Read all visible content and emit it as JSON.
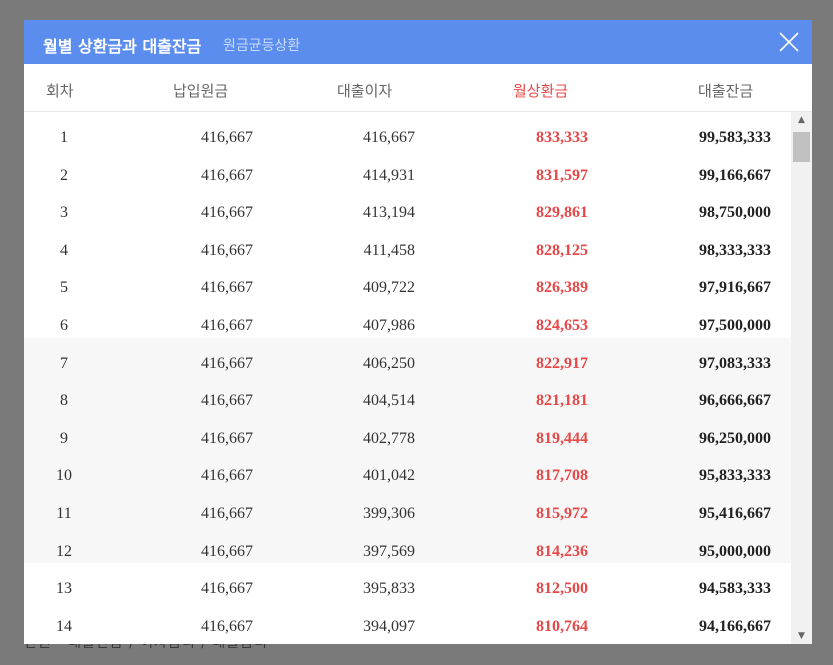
{
  "background": {
    "text": "만원 · 대출잔금 / 이자금리 / 대출금리"
  },
  "modal": {
    "title": "월별 상환금과 대출잔금",
    "subtitle": "원금균등상환",
    "close_icon": "close-x-icon",
    "accent_color": "#5b8def",
    "highlight_color": "#e84747"
  },
  "columns": [
    "회차",
    "납입원금",
    "대출이자",
    "월상환금",
    "대출잔금"
  ],
  "rows": [
    {
      "no": "1",
      "principal": "416,667",
      "interest": "416,667",
      "monthly": "833,333",
      "balance": "99,583,333"
    },
    {
      "no": "2",
      "principal": "416,667",
      "interest": "414,931",
      "monthly": "831,597",
      "balance": "99,166,667"
    },
    {
      "no": "3",
      "principal": "416,667",
      "interest": "413,194",
      "monthly": "829,861",
      "balance": "98,750,000"
    },
    {
      "no": "4",
      "principal": "416,667",
      "interest": "411,458",
      "monthly": "828,125",
      "balance": "98,333,333"
    },
    {
      "no": "5",
      "principal": "416,667",
      "interest": "409,722",
      "monthly": "826,389",
      "balance": "97,916,667"
    },
    {
      "no": "6",
      "principal": "416,667",
      "interest": "407,986",
      "monthly": "824,653",
      "balance": "97,500,000"
    },
    {
      "no": "7",
      "principal": "416,667",
      "interest": "406,250",
      "monthly": "822,917",
      "balance": "97,083,333"
    },
    {
      "no": "8",
      "principal": "416,667",
      "interest": "404,514",
      "monthly": "821,181",
      "balance": "96,666,667"
    },
    {
      "no": "9",
      "principal": "416,667",
      "interest": "402,778",
      "monthly": "819,444",
      "balance": "96,250,000"
    },
    {
      "no": "10",
      "principal": "416,667",
      "interest": "401,042",
      "monthly": "817,708",
      "balance": "95,833,333"
    },
    {
      "no": "11",
      "principal": "416,667",
      "interest": "399,306",
      "monthly": "815,972",
      "balance": "95,416,667"
    },
    {
      "no": "12",
      "principal": "416,667",
      "interest": "397,569",
      "monthly": "814,236",
      "balance": "95,000,000"
    },
    {
      "no": "13",
      "principal": "416,667",
      "interest": "395,833",
      "monthly": "812,500",
      "balance": "94,583,333"
    },
    {
      "no": "14",
      "principal": "416,667",
      "interest": "394,097",
      "monthly": "810,764",
      "balance": "94,166,667"
    }
  ]
}
